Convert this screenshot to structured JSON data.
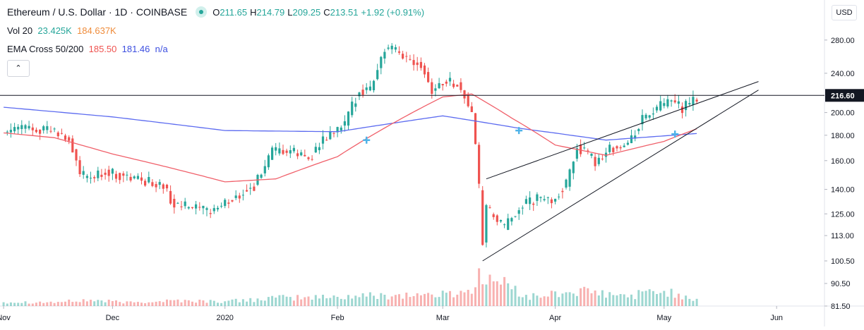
{
  "header": {
    "symbol_title": "Ethereum / U.S. Dollar · 1D · COINBASE",
    "ohlc": {
      "o_label": "O",
      "o": "211.65",
      "h_label": "H",
      "h": "214.79",
      "l_label": "L",
      "l": "209.25",
      "c_label": "C",
      "c": "213.51",
      "change": "+1.92 (+0.91%)"
    }
  },
  "indicators": {
    "volume": {
      "label": "Vol 20",
      "value1": "23.425K",
      "value2": "184.637K"
    },
    "ema": {
      "label": "EMA Cross 50/200",
      "value1": "185.50",
      "value2": "181.46",
      "value3": "n/a"
    },
    "collapse_icon": "chevron-up-icon",
    "collapse_glyph": "⌃"
  },
  "price_axis": {
    "currency": "USD",
    "ticks": [
      "280.00",
      "240.00",
      "216.60",
      "200.00",
      "180.00",
      "160.00",
      "140.00",
      "125.00",
      "113.00",
      "100.50",
      "90.50",
      "81.50"
    ],
    "scale": "log"
  },
  "time_axis": {
    "ticks": [
      "Nov",
      "Dec",
      "2020",
      "Feb",
      "Mar",
      "Apr",
      "May",
      "Jun"
    ]
  },
  "colors": {
    "up": "#26a69a",
    "down": "#ef5350",
    "ema50": "#f0606a",
    "ema200": "#5c6bf0",
    "hline": "#131722"
  },
  "chart_data": {
    "type": "candlestick",
    "title": "Ethereum / U.S. Dollar · 1D · COINBASE",
    "x_range": [
      "2019-10-31",
      "2020-06-14"
    ],
    "y_range": [
      81.5,
      335
    ],
    "y_scale": "log",
    "grid": false,
    "horizontal_line": 216.6,
    "series": [
      {
        "name": "Price",
        "points": [
          [
            "2019-11-01",
            183
          ],
          [
            "2019-11-07",
            187
          ],
          [
            "2019-11-13",
            185
          ],
          [
            "2019-11-19",
            177
          ],
          [
            "2019-11-22",
            150
          ],
          [
            "2019-11-25",
            147
          ],
          [
            "2019-11-29",
            152
          ],
          [
            "2019-12-05",
            148
          ],
          [
            "2019-12-10",
            146
          ],
          [
            "2019-12-15",
            142
          ],
          [
            "2019-12-18",
            130
          ],
          [
            "2019-12-22",
            129
          ],
          [
            "2019-12-27",
            126
          ],
          [
            "2020-01-01",
            131
          ],
          [
            "2020-01-05",
            137
          ],
          [
            "2020-01-09",
            142
          ],
          [
            "2020-01-14",
            166
          ],
          [
            "2020-01-19",
            167
          ],
          [
            "2020-01-24",
            162
          ],
          [
            "2020-01-29",
            178
          ],
          [
            "2020-02-03",
            189
          ],
          [
            "2020-02-07",
            222
          ],
          [
            "2020-02-10",
            224
          ],
          [
            "2020-02-14",
            268
          ],
          [
            "2020-02-17",
            266
          ],
          [
            "2020-02-20",
            258
          ],
          [
            "2020-02-24",
            251
          ],
          [
            "2020-02-27",
            222
          ],
          [
            "2020-03-02",
            232
          ],
          [
            "2020-03-05",
            228
          ],
          [
            "2020-03-09",
            201
          ],
          [
            "2020-03-12",
            110
          ],
          [
            "2020-03-13",
            128
          ],
          [
            "2020-03-18",
            117
          ],
          [
            "2020-03-22",
            129
          ],
          [
            "2020-03-27",
            134
          ],
          [
            "2020-03-31",
            133
          ],
          [
            "2020-04-04",
            143
          ],
          [
            "2020-04-07",
            171
          ],
          [
            "2020-04-12",
            159
          ],
          [
            "2020-04-16",
            170
          ],
          [
            "2020-04-21",
            172
          ],
          [
            "2020-04-25",
            194
          ],
          [
            "2020-04-30",
            206
          ],
          [
            "2020-05-03",
            210
          ],
          [
            "2020-05-06",
            204
          ],
          [
            "2020-05-09",
            211
          ],
          [
            "2020-05-10",
            213.51
          ]
        ]
      },
      {
        "name": "EMA 50",
        "points": [
          [
            "2019-11-01",
            182
          ],
          [
            "2019-11-15",
            178
          ],
          [
            "2019-12-01",
            165
          ],
          [
            "2019-12-15",
            156
          ],
          [
            "2020-01-01",
            145
          ],
          [
            "2020-01-15",
            147
          ],
          [
            "2020-02-01",
            163
          ],
          [
            "2020-02-15",
            188
          ],
          [
            "2020-03-01",
            215
          ],
          [
            "2020-03-09",
            218
          ],
          [
            "2020-03-20",
            195
          ],
          [
            "2020-04-01",
            172
          ],
          [
            "2020-04-15",
            164
          ],
          [
            "2020-05-01",
            175
          ],
          [
            "2020-05-10",
            185.5
          ]
        ]
      },
      {
        "name": "EMA 200",
        "points": [
          [
            "2019-11-01",
            205
          ],
          [
            "2019-12-01",
            196
          ],
          [
            "2020-01-01",
            184
          ],
          [
            "2020-02-01",
            183
          ],
          [
            "2020-03-01",
            197
          ],
          [
            "2020-03-22",
            186
          ],
          [
            "2020-04-15",
            176
          ],
          [
            "2020-05-10",
            181.46
          ]
        ]
      },
      {
        "name": "Volume",
        "points": [
          [
            "2019-11-01",
            14
          ],
          [
            "2019-11-15",
            13
          ],
          [
            "2019-11-25",
            20
          ],
          [
            "2019-12-05",
            12
          ],
          [
            "2019-12-18",
            19
          ],
          [
            "2020-01-01",
            15
          ],
          [
            "2020-01-14",
            27
          ],
          [
            "2020-01-29",
            30
          ],
          [
            "2020-02-10",
            35
          ],
          [
            "2020-02-20",
            38
          ],
          [
            "2020-03-01",
            39
          ],
          [
            "2020-03-09",
            54
          ],
          [
            "2020-03-12",
            118
          ],
          [
            "2020-03-13",
            95
          ],
          [
            "2020-03-18",
            74
          ],
          [
            "2020-03-25",
            30
          ],
          [
            "2020-04-07",
            50
          ],
          [
            "2020-04-20",
            33
          ],
          [
            "2020-04-30",
            52
          ],
          [
            "2020-05-10",
            24
          ]
        ]
      }
    ],
    "trendlines": [
      {
        "from": [
          "2020-03-12",
          100.5
        ],
        "to": [
          "2020-05-27",
          222
        ]
      },
      {
        "from": [
          "2020-03-13",
          147
        ],
        "to": [
          "2020-05-27",
          231
        ]
      }
    ],
    "cross_markers": [
      [
        "2020-02-09",
        176
      ],
      [
        "2020-03-22",
        184
      ],
      [
        "2020-05-04",
        181
      ]
    ]
  }
}
